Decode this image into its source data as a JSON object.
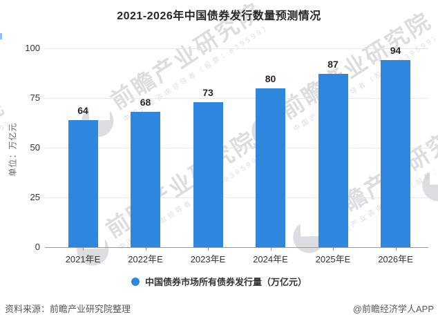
{
  "title": "2021-2026年中国债券发行数量预测情况",
  "chart_data": {
    "type": "bar",
    "categories": [
      "2021年E",
      "2022年E",
      "2023年E",
      "2024年E",
      "2025年E",
      "2026年E"
    ],
    "values": [
      64,
      68,
      73,
      80,
      87,
      94
    ],
    "title": "2021-2026年中国债券发行数量预测情况",
    "xlabel": "",
    "ylabel": "单位：万亿元",
    "ylim": [
      0,
      100
    ],
    "yticks": [
      0,
      25,
      50,
      75,
      100
    ],
    "grid": true,
    "legend": [
      "中国债券市场所有债券发行量（万亿元）"
    ],
    "legend_position": "bottom",
    "bar_color": "#2E86DE"
  },
  "y_axis": {
    "unit_label": "单位：万亿元"
  },
  "legend": {
    "label": "中国债券市场所有债券发行量（万亿元）"
  },
  "footer": {
    "source": "资料来源：前瞻产业研究院整理",
    "credit": "@前瞻经济学人APP"
  },
  "watermark": {
    "brand": "前瞻产业研究院",
    "sub": "中国产业咨询领导者（股票：839599）"
  },
  "colors": {
    "bar": "#2E86DE",
    "axis": "#999999",
    "grid": "#E8E8E8",
    "text": "#333333",
    "muted": "#595959"
  }
}
